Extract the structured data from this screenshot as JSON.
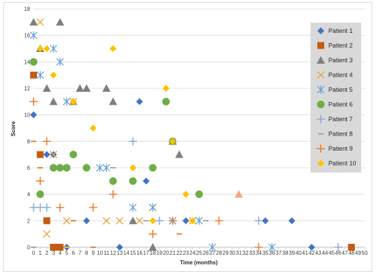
{
  "chart_data": {
    "type": "scatter",
    "title": "",
    "xlabel": "Time (months)",
    "ylabel": "Score",
    "xlim": [
      0,
      50
    ],
    "ylim": [
      0,
      18
    ],
    "xticks": [
      0,
      1,
      2,
      3,
      4,
      5,
      6,
      7,
      8,
      9,
      10,
      11,
      12,
      13,
      14,
      15,
      16,
      17,
      18,
      19,
      20,
      21,
      22,
      23,
      24,
      25,
      26,
      27,
      28,
      29,
      30,
      31,
      32,
      33,
      34,
      35,
      36,
      37,
      38,
      39,
      40,
      41,
      42,
      43,
      44,
      45,
      46,
      47,
      48,
      49,
      50
    ],
    "yticks": [
      0,
      2,
      4,
      6,
      8,
      10,
      12,
      14,
      16,
      18
    ],
    "grid": "horizontal",
    "legend_position": "right",
    "series": [
      {
        "name": "Patient 1",
        "marker": "diamond",
        "color": "#4472C4",
        "points": [
          [
            0,
            10
          ],
          [
            2,
            7
          ],
          [
            3,
            7
          ],
          [
            5,
            0
          ],
          [
            8,
            2
          ],
          [
            13,
            0
          ],
          [
            16,
            11
          ],
          [
            17,
            5
          ],
          [
            23,
            2
          ],
          [
            35,
            2
          ],
          [
            39,
            2
          ],
          [
            42,
            0
          ]
        ]
      },
      {
        "name": "Patient 2",
        "marker": "square",
        "color": "#C55A11",
        "points": [
          [
            0,
            13
          ],
          [
            1,
            7
          ],
          [
            2,
            2
          ],
          [
            3,
            0
          ],
          [
            4,
            0
          ],
          [
            48,
            0
          ]
        ]
      },
      {
        "name": "Patient 3",
        "marker": "triangle",
        "color": "#7F7F7F",
        "points": [
          [
            0,
            17
          ],
          [
            1,
            15
          ],
          [
            2,
            12
          ],
          [
            3,
            11
          ],
          [
            4,
            17
          ],
          [
            6,
            11
          ],
          [
            7,
            12
          ],
          [
            8,
            12
          ],
          [
            11,
            12
          ],
          [
            12,
            11
          ],
          [
            15,
            2
          ],
          [
            18,
            0
          ],
          [
            21,
            8
          ],
          [
            22,
            7
          ]
        ]
      },
      {
        "name": "Patient 4",
        "marker": "x",
        "color": "#E8A33D",
        "points": [
          [
            1,
            17
          ],
          [
            2,
            1
          ],
          [
            3,
            7
          ],
          [
            5,
            2
          ],
          [
            6,
            11
          ],
          [
            11,
            2
          ],
          [
            13,
            2
          ],
          [
            16,
            2
          ],
          [
            18,
            3
          ],
          [
            21,
            2
          ],
          [
            24,
            2
          ]
        ]
      },
      {
        "name": "Patient 5",
        "marker": "asterisk",
        "color": "#5B9BD5",
        "points": [
          [
            0,
            16
          ],
          [
            1,
            13
          ],
          [
            3,
            15
          ],
          [
            4,
            14
          ],
          [
            5,
            11
          ],
          [
            10,
            6
          ],
          [
            11,
            6
          ],
          [
            15,
            3
          ],
          [
            18,
            3
          ],
          [
            21,
            2
          ],
          [
            25,
            2
          ],
          [
            27,
            0
          ],
          [
            36,
            0
          ]
        ]
      },
      {
        "name": "Patient 6",
        "marker": "circle",
        "color": "#70AD47",
        "points": [
          [
            0,
            14
          ],
          [
            1,
            4
          ],
          [
            3,
            6
          ],
          [
            4,
            6
          ],
          [
            5,
            6
          ],
          [
            6,
            7
          ],
          [
            8,
            6
          ],
          [
            12,
            5
          ],
          [
            15,
            5
          ],
          [
            18,
            6
          ],
          [
            20,
            11
          ],
          [
            21,
            8
          ],
          [
            25,
            4
          ]
        ]
      },
      {
        "name": "Patient 7",
        "marker": "plus",
        "color": "#8EA9DB",
        "points": [
          [
            0,
            3
          ],
          [
            1,
            3
          ],
          [
            2,
            3
          ],
          [
            15,
            8
          ],
          [
            19,
            2
          ],
          [
            34,
            2
          ],
          [
            46,
            0
          ]
        ]
      },
      {
        "name": "Patient 8",
        "marker": "dash",
        "color": "#A5A5A5",
        "points": [
          [
            0,
            0
          ],
          [
            1,
            6
          ],
          [
            6,
            2
          ],
          [
            12,
            6
          ],
          [
            17,
            2
          ],
          [
            26,
            2
          ]
        ]
      },
      {
        "name": "Patient 9",
        "marker": "plus",
        "color": "#ED7D31",
        "points": [
          [
            0,
            11
          ],
          [
            1,
            5
          ],
          [
            2,
            8
          ],
          [
            4,
            3
          ],
          [
            9,
            3
          ],
          [
            12,
            4
          ],
          [
            18,
            1
          ],
          [
            21,
            2
          ],
          [
            28,
            2
          ],
          [
            34,
            0
          ]
        ]
      },
      {
        "name": "Patient 10",
        "marker": "diamond",
        "color": "#FFC000",
        "points": [
          [
            1,
            15
          ],
          [
            2,
            15
          ],
          [
            3,
            13
          ],
          [
            6,
            11
          ],
          [
            9,
            9
          ],
          [
            12,
            15
          ],
          [
            15,
            6
          ],
          [
            18,
            2
          ],
          [
            20,
            12
          ],
          [
            21,
            8
          ],
          [
            23,
            4
          ],
          [
            24,
            2
          ]
        ]
      },
      {
        "name": "",
        "marker": "triangle",
        "color": "#F4A582",
        "in_legend": false,
        "points": [
          [
            31,
            4
          ]
        ]
      },
      {
        "name": "",
        "marker": "dash",
        "color": "#ED7D31",
        "in_legend": false,
        "points": [
          [
            0,
            8
          ],
          [
            1,
            6
          ],
          [
            6,
            2
          ],
          [
            22,
            1
          ],
          [
            9,
            0
          ]
        ]
      },
      {
        "name": "",
        "marker": "dash",
        "color": "#FFC000",
        "in_legend": false,
        "points": [
          [
            5,
            0
          ]
        ]
      }
    ]
  }
}
